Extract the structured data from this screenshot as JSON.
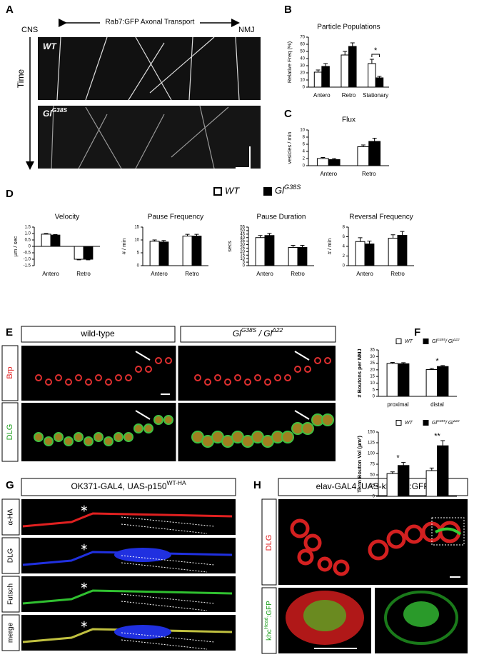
{
  "panel_letters": [
    "A",
    "B",
    "C",
    "D",
    "E",
    "F",
    "G",
    "H"
  ],
  "panel_a": {
    "title": "Rab7:GFP Axonal Transport",
    "left": "CNS",
    "right": "NMJ",
    "axis": "Time",
    "top_label": "WT",
    "bottom_label": [
      "Gl",
      "G38S"
    ]
  },
  "panel_e": {
    "columns": [
      "wild-type",
      [
        "Gl",
        "G38S",
        " / Gl",
        "Δ22"
      ]
    ],
    "rows": [
      "Brp",
      "DLG"
    ]
  },
  "panel_g": {
    "title": [
      "OK371-GAL4, UAS-p150",
      "WT-HA"
    ],
    "rows": [
      "α-HA",
      "DLG",
      "Futsch",
      "merge"
    ]
  },
  "panel_h": {
    "title": [
      "elav-GAL4, UAS-khc",
      "Head",
      ":GFP"
    ],
    "rows": [
      "DLG",
      [
        "khc",
        "Head",
        ":GFP"
      ]
    ]
  },
  "chart_data": [
    {
      "type": "bar",
      "title": "Particle Populations",
      "ylabel": "Relative Freq (%)",
      "categories": [
        "Antero",
        "Retro",
        "Stationary"
      ],
      "series": [
        {
          "color": "#ffffff",
          "values": [
            21,
            45,
            33
          ],
          "errors": [
            3,
            5,
            6
          ]
        },
        {
          "color": "#000000",
          "values": [
            29,
            57,
            13
          ],
          "errors": [
            4,
            5,
            2
          ]
        }
      ],
      "ylim": [
        0,
        70
      ],
      "yticks": [
        0,
        10,
        20,
        30,
        40,
        50,
        60,
        70
      ],
      "annotations": [
        null,
        null,
        "*"
      ],
      "bracket": true
    },
    {
      "type": "bar",
      "title": "Flux",
      "ylabel": "vesicles / min",
      "categories": [
        "Antero",
        "Retro"
      ],
      "series": [
        {
          "color": "#ffffff",
          "values": [
            2.0,
            5.3
          ],
          "errors": [
            0.3,
            0.5
          ]
        },
        {
          "color": "#000000",
          "values": [
            1.7,
            6.8
          ],
          "errors": [
            0.3,
            0.9
          ]
        }
      ],
      "ylim": [
        0,
        10
      ],
      "yticks": [
        0,
        2,
        4,
        6,
        8,
        10
      ]
    },
    {
      "type": "bar",
      "title": "Velocity",
      "ylabel": "µm / sec",
      "categories": [
        "Antero",
        "Retro"
      ],
      "series": [
        {
          "name": "WT",
          "color": "#ffffff",
          "values": [
            0.95,
            -1.0
          ],
          "errors": [
            0.06,
            0.05
          ]
        },
        {
          "name_parts": [
            "Gl",
            "G38S"
          ],
          "color": "#000000",
          "values": [
            0.88,
            -1.0
          ],
          "errors": [
            0.04,
            0.05
          ]
        }
      ],
      "ylim": [
        -1.5,
        1.5
      ],
      "yticks": [
        -1.5,
        {
          "value": -1.0,
          "label": "-1.0"
        },
        -0.5,
        0,
        0.5,
        {
          "value": 1.0,
          "label": "1.0"
        },
        1.5
      ]
    },
    {
      "type": "bar",
      "title": "Pause Frequency",
      "ylabel": "# / min",
      "categories": [
        "Antero",
        "Retro"
      ],
      "series": [
        {
          "color": "#ffffff",
          "values": [
            9.5,
            11.5
          ],
          "errors": [
            0.5,
            0.7
          ]
        },
        {
          "color": "#000000",
          "values": [
            9.2,
            11.5
          ],
          "errors": [
            0.6,
            0.7
          ]
        }
      ],
      "ylim": [
        0,
        15
      ],
      "yticks": [
        0,
        5,
        10,
        15
      ]
    },
    {
      "type": "bar",
      "title": "Pause Duration",
      "ylabel": "secs",
      "categories": [
        "Antero",
        "Retro"
      ],
      "series": [
        {
          "color": "#ffffff",
          "values": [
            40,
            26
          ],
          "errors": [
            3,
            3
          ]
        },
        {
          "color": "#000000",
          "values": [
            43,
            26
          ],
          "errors": [
            3,
            3
          ]
        }
      ],
      "ylim": [
        0,
        55
      ],
      "yticks": [
        0,
        5,
        10,
        15,
        20,
        25,
        30,
        35,
        40,
        45,
        50,
        55
      ]
    },
    {
      "type": "bar",
      "title": "Reversal Frequency",
      "ylabel": "# / min",
      "categories": [
        "Antero",
        "Retro"
      ],
      "series": [
        {
          "color": "#ffffff",
          "values": [
            5.0,
            5.7
          ],
          "errors": [
            0.8,
            0.7
          ]
        },
        {
          "color": "#000000",
          "values": [
            4.5,
            6.3
          ],
          "errors": [
            0.6,
            0.8
          ]
        }
      ],
      "ylim": [
        0,
        8
      ],
      "yticks": [
        0,
        2,
        4,
        6,
        8
      ]
    },
    {
      "type": "bar",
      "ylabel": "# Boutons per NMJ",
      "categories": [
        "proximal",
        "distal"
      ],
      "series": [
        {
          "name": "WT",
          "color": "#ffffff",
          "values": [
            24.8,
            20.2
          ],
          "errors": [
            0.8,
            0.8
          ]
        },
        {
          "name_parts": [
            "Gl",
            "G385",
            "/ Gl",
            "Δ22"
          ],
          "color": "#000000",
          "values": [
            24.6,
            22.5
          ],
          "errors": [
            0.8,
            0.7
          ]
        }
      ],
      "ylim": [
        0,
        35
      ],
      "yticks": [
        0,
        5,
        10,
        15,
        20,
        25,
        30,
        35
      ],
      "annotations": [
        null,
        "*"
      ]
    },
    {
      "type": "bar",
      "ylabel": "Term Bouton Vol (µm³)",
      "categories": [
        "proximal",
        "distal"
      ],
      "series": [
        {
          "name": "WT",
          "color": "#ffffff",
          "values": [
            53,
            60
          ],
          "errors": [
            4,
            6
          ]
        },
        {
          "name_parts": [
            "Gl",
            "G385",
            "/ Gl",
            "Δ22"
          ],
          "color": "#000000",
          "values": [
            72,
            118
          ],
          "errors": [
            7,
            12
          ]
        }
      ],
      "ylim": [
        0,
        150
      ],
      "yticks": [
        0,
        25,
        50,
        75,
        100,
        125,
        150
      ],
      "annotations": [
        "*",
        "**"
      ]
    }
  ]
}
